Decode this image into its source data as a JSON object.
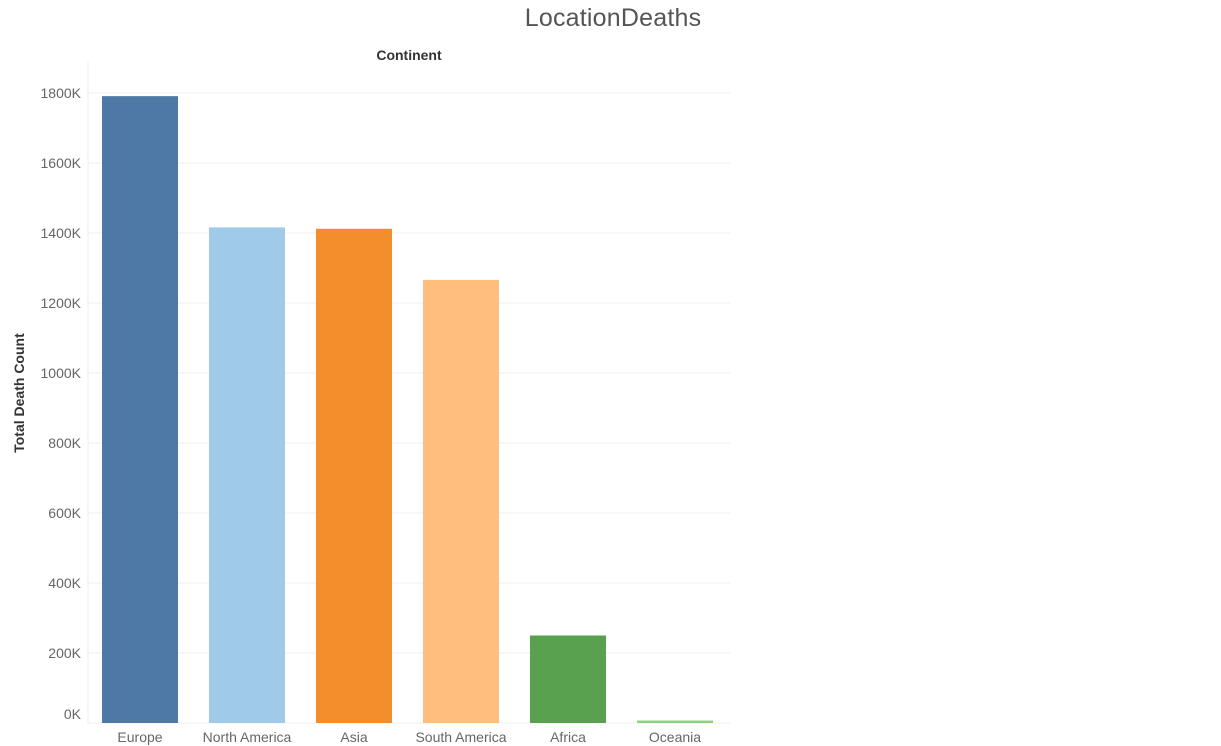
{
  "title": "LocationDeaths",
  "header": "Continent",
  "chart_data": {
    "type": "bar",
    "title": "LocationDeaths",
    "column_header": "Continent",
    "xlabel": "",
    "ylabel": "Total Death Count",
    "categories": [
      "Europe",
      "North America",
      "Asia",
      "South America",
      "Africa",
      "Oceania"
    ],
    "values": [
      1791000,
      1416000,
      1412000,
      1266000,
      250000,
      7000
    ],
    "colors": [
      "#4e79a7",
      "#a0cbe8",
      "#f28e2b",
      "#ffbe7d",
      "#59a14f",
      "#8cd17d"
    ],
    "ylim": [
      0,
      1800000
    ],
    "yticks": [
      0,
      200000,
      400000,
      600000,
      800000,
      1000000,
      1200000,
      1400000,
      1600000,
      1800000
    ],
    "ytick_labels": [
      "0K",
      "200K",
      "400K",
      "600K",
      "800K",
      "1000K",
      "1200K",
      "1400K",
      "1600K",
      "1800K"
    ],
    "grid": true,
    "legend": "none"
  }
}
